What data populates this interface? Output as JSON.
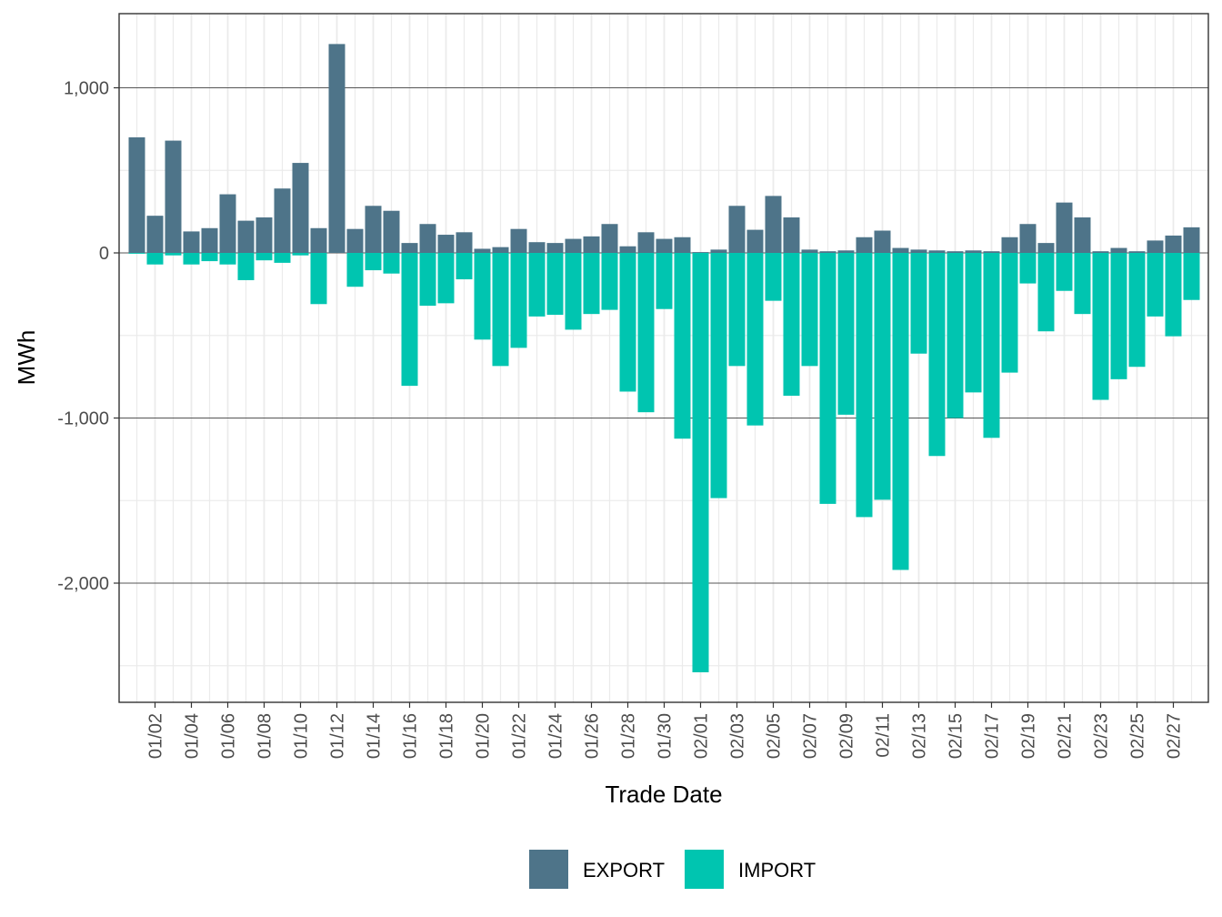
{
  "chart_data": {
    "type": "bar",
    "stacked": true,
    "title": "",
    "xlabel": "Trade Date",
    "ylabel": "MWh",
    "ylim": [
      -2720,
      1450
    ],
    "y_ticks": [
      1000,
      0,
      -1000,
      -2000
    ],
    "y_tick_labels": [
      "1,000",
      "0",
      "-1,000",
      "-2,000"
    ],
    "grid": true,
    "legend_position": "bottom",
    "categories": [
      "01/01",
      "01/02",
      "01/03",
      "01/04",
      "01/05",
      "01/06",
      "01/07",
      "01/08",
      "01/09",
      "01/10",
      "01/11",
      "01/12",
      "01/13",
      "01/14",
      "01/15",
      "01/16",
      "01/17",
      "01/18",
      "01/19",
      "01/20",
      "01/21",
      "01/22",
      "01/23",
      "01/24",
      "01/25",
      "01/26",
      "01/27",
      "01/28",
      "01/29",
      "01/30",
      "01/31",
      "02/01",
      "02/02",
      "02/03",
      "02/04",
      "02/05",
      "02/06",
      "02/07",
      "02/08",
      "02/09",
      "02/10",
      "02/11",
      "02/12",
      "02/13",
      "02/14",
      "02/15",
      "02/16",
      "02/17",
      "02/18",
      "02/19",
      "02/20",
      "02/21",
      "02/22",
      "02/23",
      "02/24",
      "02/25",
      "02/26",
      "02/27",
      "02/28"
    ],
    "x_tick_labels": [
      "01/02",
      "01/04",
      "01/06",
      "01/08",
      "01/10",
      "01/12",
      "01/14",
      "01/16",
      "01/18",
      "01/20",
      "01/22",
      "01/24",
      "01/26",
      "01/28",
      "01/30",
      "02/01",
      "02/03",
      "02/05",
      "02/07",
      "02/09",
      "02/11",
      "02/13",
      "02/15",
      "02/17",
      "02/19",
      "02/21",
      "02/23",
      "02/25",
      "02/27"
    ],
    "series": [
      {
        "name": "EXPORT",
        "color": "#4e7489",
        "values": [
          700,
          225,
          680,
          130,
          150,
          355,
          195,
          215,
          390,
          545,
          150,
          1265,
          145,
          285,
          255,
          60,
          175,
          110,
          125,
          25,
          35,
          145,
          65,
          60,
          85,
          100,
          175,
          40,
          125,
          85,
          95,
          5,
          20,
          285,
          140,
          345,
          215,
          20,
          10,
          15,
          95,
          135,
          30,
          20,
          15,
          10,
          15,
          10,
          95,
          175,
          60,
          305,
          215,
          10,
          30,
          10,
          75,
          105,
          155
        ]
      },
      {
        "name": "IMPORT",
        "color": "#00c5b0",
        "values": [
          -5,
          -70,
          -15,
          -70,
          -50,
          -70,
          -165,
          -45,
          -60,
          -15,
          -310,
          0,
          -205,
          -105,
          -125,
          -805,
          -320,
          -305,
          -160,
          -525,
          -685,
          -575,
          -385,
          -375,
          -465,
          -370,
          -345,
          -840,
          -965,
          -340,
          -1125,
          -2540,
          -1485,
          -685,
          -1045,
          -290,
          -865,
          -685,
          -1520,
          -980,
          -1600,
          -1495,
          -1920,
          -610,
          -1230,
          -1000,
          -845,
          -1120,
          -725,
          -185,
          -475,
          -230,
          -370,
          -890,
          -765,
          -690,
          -385,
          -505,
          -285
        ]
      }
    ]
  }
}
